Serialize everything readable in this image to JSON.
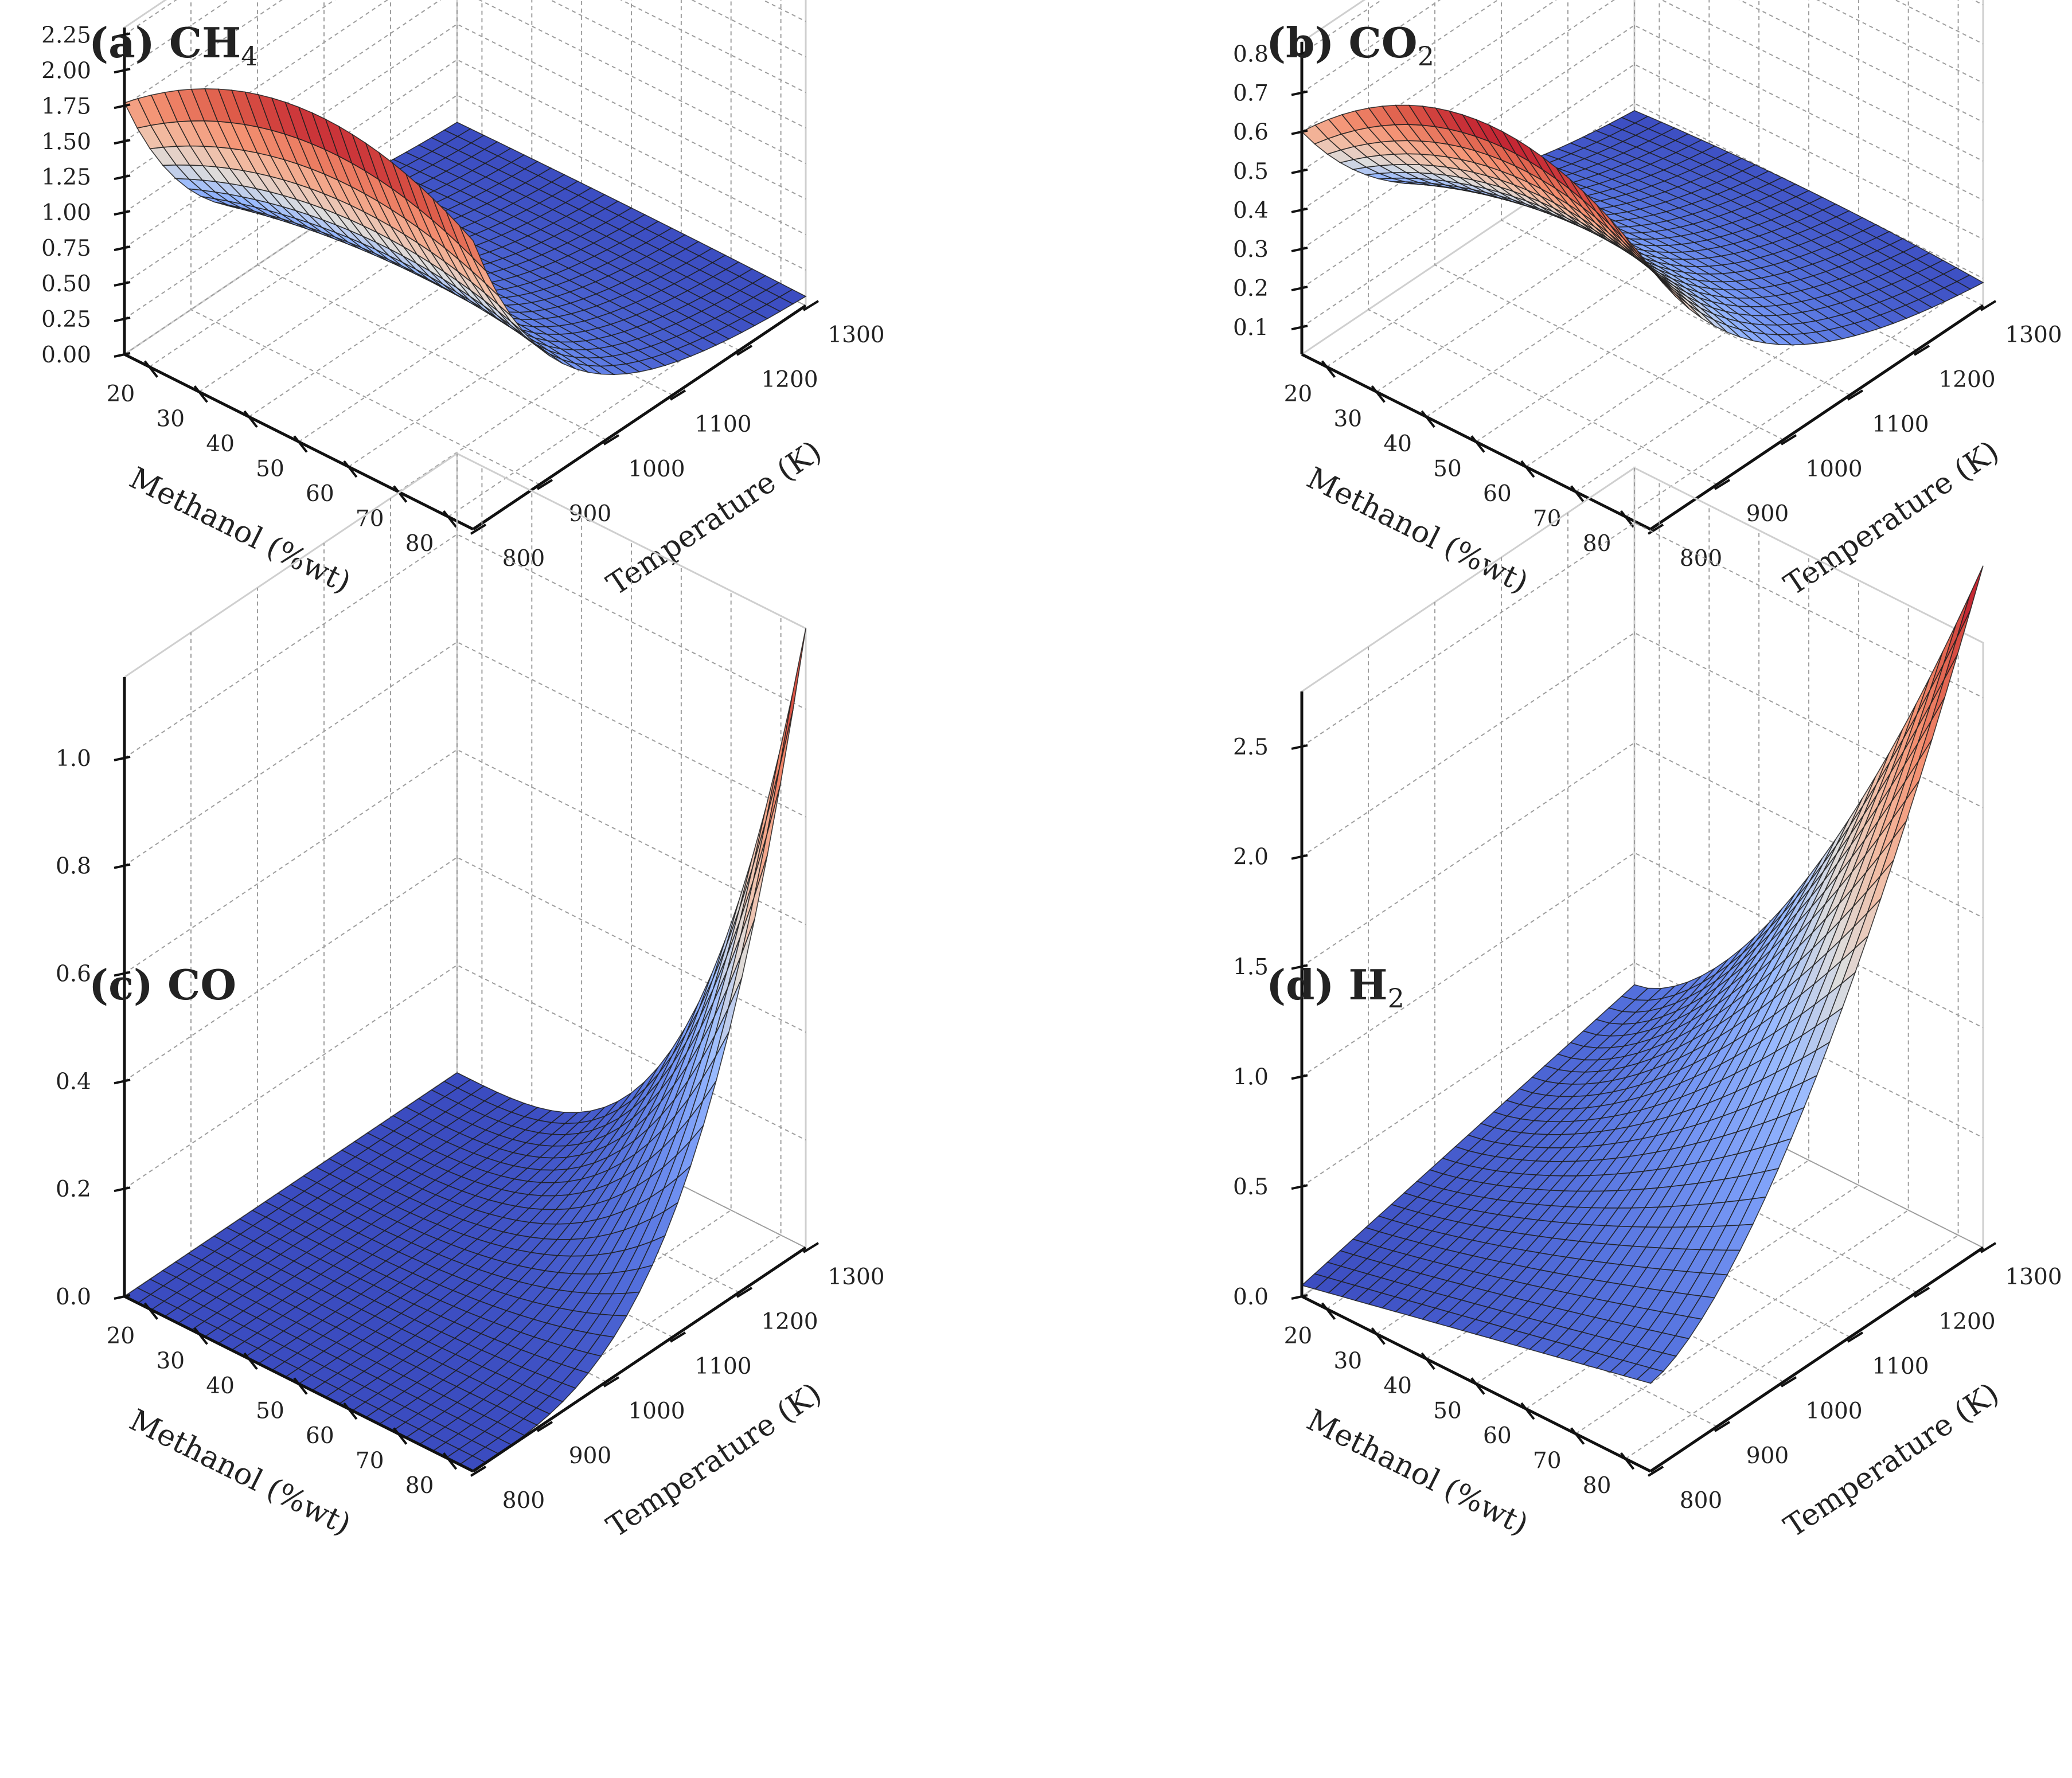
{
  "chart_data": [
    {
      "type": "surface",
      "panel": "a",
      "title": "(a) CH",
      "title_sub": "4",
      "xlabel": "Temperature (K)",
      "ylabel": "Methanol (%wt)",
      "zlabel": "",
      "xlim": [
        800,
        1300
      ],
      "ylim": [
        15,
        85
      ],
      "zlim": [
        0,
        2.3
      ],
      "xticks": [
        800,
        900,
        1000,
        1100,
        1200,
        1300
      ],
      "yticks": [
        20,
        30,
        40,
        50,
        60,
        70,
        80
      ],
      "zticks": [
        0.0,
        0.25,
        0.5,
        0.75,
        1.0,
        1.25,
        1.5,
        1.75,
        2.0,
        2.25
      ],
      "xtick_labels": [
        "800",
        "900",
        "1000",
        "1100",
        "1200",
        "1300"
      ],
      "ytick_labels": [
        "20",
        "30",
        "40",
        "50",
        "60",
        "70",
        "80"
      ],
      "ztick_labels": [
        "0.00",
        "0.25",
        "0.50",
        "0.75",
        "1.00",
        "1.25",
        "1.50",
        "1.75",
        "2.00",
        "2.25"
      ],
      "surface_range": {
        "x": [
          800,
          1300
        ],
        "y": [
          15,
          85
        ]
      },
      "surface_model": "CH4 yield: max about 2.27 at 800 K and 40-60 %wt methanol, decaying exponentially with temperature to about 0.02 at 1300 K",
      "corners": {
        "T800_M15": 1.75,
        "T800_M50": 2.27,
        "T800_M85": 1.95,
        "T1300_M15": 0.02,
        "T1300_M85": 0.02
      },
      "colormap": "coolwarm"
    },
    {
      "type": "surface",
      "panel": "b",
      "title": "(b) CO",
      "title_sub": "2",
      "xlabel": "Temperature (K)",
      "ylabel": "Methanol (%wt)",
      "zlabel": "",
      "xlim": [
        800,
        1300
      ],
      "ylim": [
        15,
        85
      ],
      "zlim": [
        0.03,
        0.83
      ],
      "xticks": [
        800,
        900,
        1000,
        1100,
        1200,
        1300
      ],
      "yticks": [
        20,
        30,
        40,
        50,
        60,
        70,
        80
      ],
      "zticks": [
        0.1,
        0.2,
        0.3,
        0.4,
        0.5,
        0.6,
        0.7,
        0.8
      ],
      "xtick_labels": [
        "800",
        "900",
        "1000",
        "1100",
        "1200",
        "1300"
      ],
      "ytick_labels": [
        "20",
        "30",
        "40",
        "50",
        "60",
        "70",
        "80"
      ],
      "ztick_labels": [
        "0.1",
        "0.2",
        "0.3",
        "0.4",
        "0.5",
        "0.6",
        "0.7",
        "0.8"
      ],
      "surface_range": {
        "x": [
          800,
          1300
        ],
        "y": [
          15,
          85
        ]
      },
      "surface_model": "CO2 yield: max about 0.83 at 800 K and 45-55 %wt methanol, decreasing with temperature to about 0.05 at 1300 K",
      "corners": {
        "T800_M15": 0.62,
        "T800_M50": 0.83,
        "T800_M85": 0.72,
        "T1300_M15": 0.05,
        "T1300_M85": 0.06
      },
      "colormap": "coolwarm"
    },
    {
      "type": "surface",
      "panel": "c",
      "title": "(c) CO",
      "title_sub": "",
      "xlabel": "Temperature (K)",
      "ylabel": "Methanol (%wt)",
      "zlabel": "",
      "xlim": [
        800,
        1300
      ],
      "ylim": [
        15,
        85
      ],
      "zlim": [
        0,
        1.15
      ],
      "xticks": [
        800,
        900,
        1000,
        1100,
        1200,
        1300
      ],
      "yticks": [
        20,
        30,
        40,
        50,
        60,
        70,
        80
      ],
      "zticks": [
        0.0,
        0.2,
        0.4,
        0.6,
        0.8,
        1.0
      ],
      "xtick_labels": [
        "800",
        "900",
        "1000",
        "1100",
        "1200",
        "1300"
      ],
      "ytick_labels": [
        "20",
        "30",
        "40",
        "50",
        "60",
        "70",
        "80"
      ],
      "ztick_labels": [
        "0.0",
        "0.2",
        "0.4",
        "0.6",
        "0.8",
        "1.0"
      ],
      "surface_range": {
        "x": [
          800,
          1300
        ],
        "y": [
          15,
          85
        ]
      },
      "surface_model": "CO yield: near 0 at low temperature and low methanol, rising sharply to a peak of about 1.15 at 1300 K and 85 %wt methanol",
      "corners": {
        "T800_M15": 0.0,
        "T800_M85": 0.01,
        "T1300_M15": 0.02,
        "T1300_M85": 1.15
      },
      "colormap": "coolwarm"
    },
    {
      "type": "surface",
      "panel": "d",
      "title": "(d) H",
      "title_sub": "2",
      "xlabel": "Temperature (K)",
      "ylabel": "Methanol (%wt)",
      "zlabel": "",
      "xlim": [
        800,
        1300
      ],
      "ylim": [
        15,
        85
      ],
      "zlim": [
        0,
        2.75
      ],
      "xticks": [
        800,
        900,
        1000,
        1100,
        1200,
        1300
      ],
      "yticks": [
        20,
        30,
        40,
        50,
        60,
        70,
        80
      ],
      "zticks": [
        0.0,
        0.5,
        1.0,
        1.5,
        2.0,
        2.5
      ],
      "xtick_labels": [
        "800",
        "900",
        "1000",
        "1100",
        "1200",
        "1300"
      ],
      "ytick_labels": [
        "20",
        "30",
        "40",
        "50",
        "60",
        "70",
        "80"
      ],
      "ztick_labels": [
        "0.0",
        "0.5",
        "1.0",
        "1.5",
        "2.0",
        "2.5"
      ],
      "surface_range": {
        "x": [
          800,
          1300
        ],
        "y": [
          15,
          85
        ]
      },
      "surface_model": "H2 yield: near 0.05 at 800 K and low methanol, rising to a peak of about 2.75 at 1300 K and 85 %wt methanol",
      "corners": {
        "T800_M15": 0.05,
        "T800_M85": 0.45,
        "T1300_M15": 0.4,
        "T1300_M85": 2.75
      },
      "colormap": "coolwarm"
    }
  ]
}
